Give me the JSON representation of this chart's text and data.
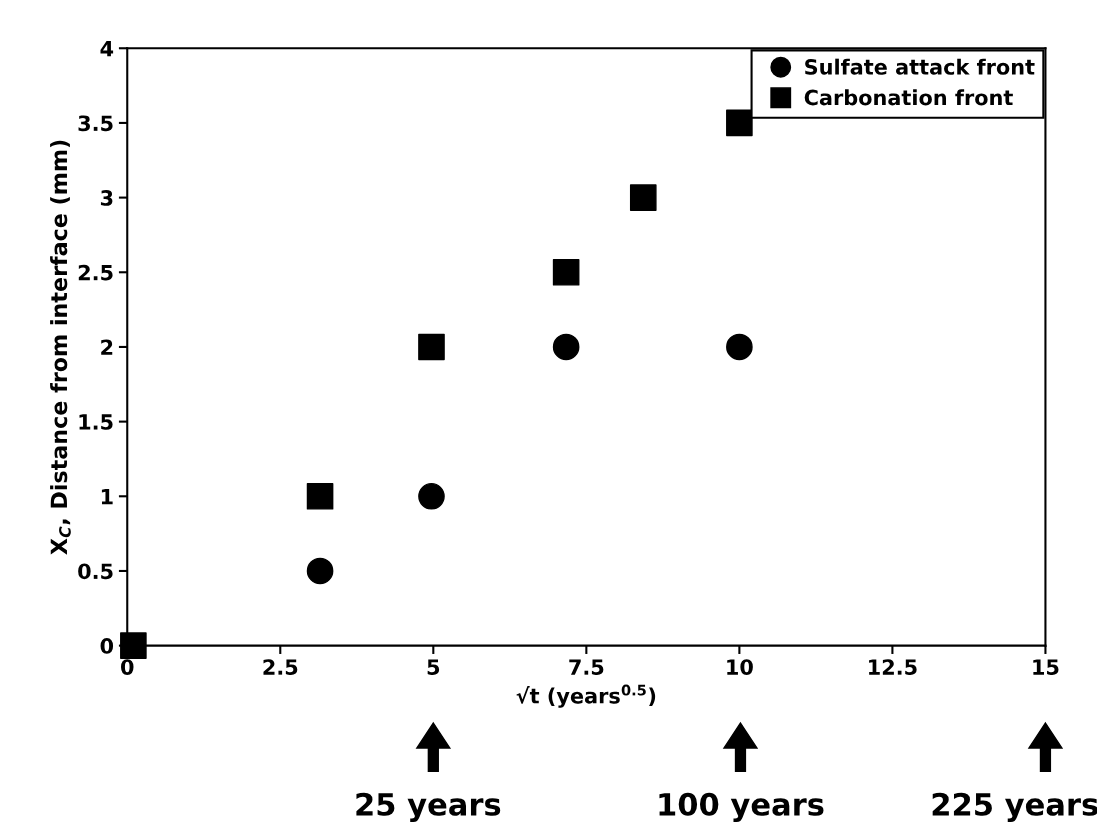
{
  "chart_data": {
    "type": "scatter",
    "xlabel": "√t (years$^{0.5}$)",
    "ylabel": "X$_{C}$, Distance from interface (mm)",
    "xlim": [
      0,
      15
    ],
    "xticks": [
      0,
      2.5,
      5,
      7.5,
      10,
      12.5,
      15
    ],
    "ylim": [
      0,
      4
    ],
    "yticks": [
      0,
      0.5,
      1,
      1.5,
      2,
      2.5,
      3,
      3.5,
      4
    ],
    "legend": "top right",
    "grid": false,
    "series": [
      {
        "name": "Sulfate attack front",
        "color": "#000000",
        "marker": "circle",
        "x": [
          3.15,
          4.97,
          7.17,
          10.0
        ],
        "values": [
          0.5,
          1,
          2,
          2
        ]
      },
      {
        "name": "Carbonation front",
        "color": "#000000",
        "marker": "square",
        "x": [
          0.1,
          3.15,
          4.97,
          7.17,
          8.43,
          10.0
        ],
        "values": [
          0,
          1,
          2,
          2.5,
          3,
          3.5
        ]
      }
    ],
    "annotations": [
      "25 years",
      "100 years",
      "225 years"
    ]
  }
}
